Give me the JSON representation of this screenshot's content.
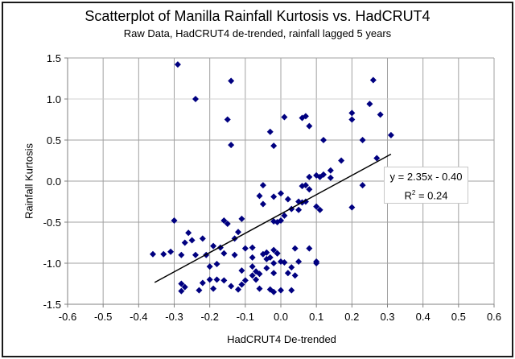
{
  "chart_data": {
    "type": "scatter",
    "title": "Scatterplot of Manilla Rainfall Kurtosis vs. HadCRUT4",
    "subtitle": "Raw Data, HadCRUT4 de-trended, rainfall lagged 5 years",
    "xlabel": "HadCRUT4 De-trended",
    "ylabel": "Rainfall Kurtosis",
    "xlim": [
      -0.6,
      0.6
    ],
    "ylim": [
      -1.5,
      1.5
    ],
    "xticks": [
      "-0.6",
      "-0.5",
      "-0.4",
      "-0.3",
      "-0.2",
      "-0.1",
      "0.0",
      "0.1",
      "0.2",
      "0.3",
      "0.4",
      "0.5",
      "0.6"
    ],
    "yticks": [
      "1.5",
      "1.0",
      "0.5",
      "0.0",
      "-0.5",
      "-1.0",
      "-1.5"
    ],
    "grid": true,
    "marker": "diamond",
    "marker_color": "#000080",
    "trendline": {
      "equation": "y = 2.35x - 0.40",
      "r2_label": "R",
      "r2_sup": "2",
      "r2_value": " = 0.24",
      "slope": 2.35,
      "intercept": -0.4,
      "x_range": [
        -0.355,
        0.31
      ]
    },
    "points": [
      [
        -0.29,
        1.42
      ],
      [
        -0.14,
        1.22
      ],
      [
        -0.24,
        1.0
      ],
      [
        -0.15,
        0.75
      ],
      [
        -0.14,
        0.44
      ],
      [
        0.01,
        0.78
      ],
      [
        -0.03,
        0.6
      ],
      [
        -0.02,
        0.43
      ],
      [
        0.06,
        0.77
      ],
      [
        0.07,
        0.79
      ],
      [
        0.08,
        0.67
      ],
      [
        0.12,
        0.5
      ],
      [
        0.2,
        0.83
      ],
      [
        0.2,
        0.75
      ],
      [
        0.25,
        0.94
      ],
      [
        0.28,
        0.81
      ],
      [
        0.26,
        1.23
      ],
      [
        0.31,
        0.56
      ],
      [
        0.12,
        0.08
      ],
      [
        0.11,
        0.05
      ],
      [
        0.14,
        0.13
      ],
      [
        0.08,
        0.05
      ],
      [
        0.17,
        0.25
      ],
      [
        0.23,
        0.5
      ],
      [
        0.27,
        0.28
      ],
      [
        0.07,
        -0.05
      ],
      [
        0.08,
        -0.1
      ],
      [
        0.23,
        -0.05
      ],
      [
        0.0,
        -0.15
      ],
      [
        -0.05,
        -0.05
      ],
      [
        -0.06,
        -0.18
      ],
      [
        -0.02,
        -0.19
      ],
      [
        0.05,
        -0.25
      ],
      [
        0.07,
        -0.25
      ],
      [
        0.11,
        -0.35
      ],
      [
        0.03,
        -0.34
      ],
      [
        0.06,
        -0.26
      ],
      [
        0.2,
        -0.32
      ],
      [
        0.05,
        -0.35
      ],
      [
        -0.05,
        -0.28
      ],
      [
        0.0,
        -0.48
      ],
      [
        -0.01,
        -0.5
      ],
      [
        -0.11,
        -0.46
      ],
      [
        -0.16,
        -0.48
      ],
      [
        -0.3,
        -0.48
      ],
      [
        -0.15,
        -0.52
      ],
      [
        -0.02,
        -0.49
      ],
      [
        -0.26,
        -0.63
      ],
      [
        -0.27,
        -0.75
      ],
      [
        -0.25,
        -0.72
      ],
      [
        -0.22,
        -0.7
      ],
      [
        -0.13,
        -0.7
      ],
      [
        -0.19,
        -0.79
      ],
      [
        -0.17,
        -0.81
      ],
      [
        -0.1,
        -0.82
      ],
      [
        -0.08,
        -0.81
      ],
      [
        -0.33,
        -0.89
      ],
      [
        -0.31,
        -0.86
      ],
      [
        -0.28,
        -0.9
      ],
      [
        -0.24,
        -0.9
      ],
      [
        -0.21,
        -0.9
      ],
      [
        -0.16,
        -0.88
      ],
      [
        -0.13,
        -0.9
      ],
      [
        -0.08,
        -0.93
      ],
      [
        -0.01,
        -0.88
      ],
      [
        0.04,
        -0.82
      ],
      [
        0.08,
        -0.82
      ],
      [
        0.1,
        -0.98
      ],
      [
        0.05,
        -0.98
      ],
      [
        0.01,
        -0.99
      ],
      [
        -0.05,
        -0.89
      ],
      [
        -0.04,
        -0.95
      ],
      [
        -0.03,
        -0.93
      ],
      [
        -0.02,
        -0.84
      ],
      [
        -0.01,
        -0.88
      ],
      [
        -0.0,
        -0.98
      ],
      [
        -0.02,
        -1.0
      ],
      [
        -0.11,
        -1.09
      ],
      [
        -0.2,
        -1.04
      ],
      [
        -0.18,
        -1.01
      ],
      [
        -0.08,
        -1.04
      ],
      [
        -0.07,
        -1.1
      ],
      [
        -0.04,
        -1.06
      ],
      [
        0.03,
        -1.05
      ],
      [
        -0.08,
        -1.15
      ],
      [
        -0.07,
        -1.2
      ],
      [
        -0.06,
        -1.13
      ],
      [
        -0.02,
        -1.12
      ],
      [
        0.02,
        -1.12
      ],
      [
        -0.22,
        -1.24
      ],
      [
        -0.18,
        -1.2
      ],
      [
        -0.11,
        -1.26
      ],
      [
        -0.2,
        -1.2
      ],
      [
        -0.1,
        -1.21
      ],
      [
        -0.16,
        -1.21
      ],
      [
        -0.28,
        -1.25
      ],
      [
        -0.27,
        -1.29
      ],
      [
        -0.28,
        -1.34
      ],
      [
        -0.23,
        -1.33
      ],
      [
        -0.19,
        -1.31
      ],
      [
        -0.12,
        -1.32
      ],
      [
        -0.14,
        -1.28
      ],
      [
        -0.03,
        -1.32
      ],
      [
        -0.02,
        -1.35
      ],
      [
        0.0,
        -1.33
      ],
      [
        0.03,
        -1.33
      ],
      [
        -0.06,
        -1.31
      ],
      [
        -0.36,
        -0.89
      ],
      [
        0.1,
        -1.0
      ],
      [
        -0.04,
        -0.87
      ],
      [
        0.04,
        -1.15
      ],
      [
        0.1,
        0.07
      ],
      [
        0.02,
        -0.22
      ],
      [
        0.1,
        -0.31
      ],
      [
        0.01,
        -0.42
      ],
      [
        0.14,
        0.04
      ],
      [
        0.06,
        -0.06
      ],
      [
        -0.12,
        -0.62
      ]
    ]
  }
}
